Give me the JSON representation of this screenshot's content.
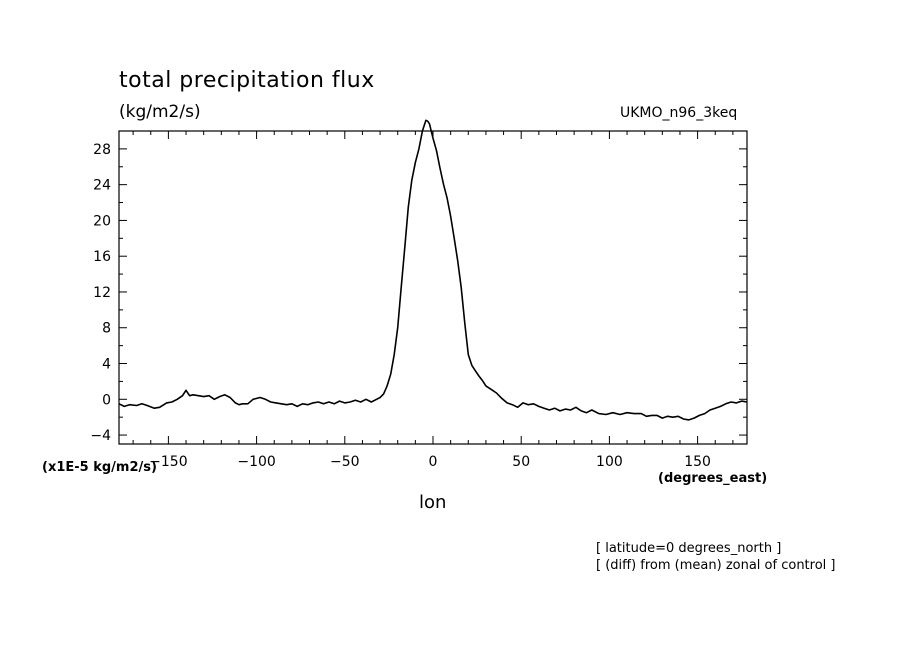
{
  "figure": {
    "title": "total precipitation flux",
    "units": "(kg/m2/s)",
    "model": "UKMO_n96_3keq",
    "yunit": "(x1E-5 kg/m2/s)",
    "xunit": "(degrees_east)",
    "xlabel": "lon",
    "note_latitude": "[ latitude=0 degrees_north ]",
    "note_diff": "[ (diff) from (mean) zonal of control ]"
  },
  "chart_data": {
    "type": "line",
    "title": "total precipitation flux",
    "units": "(kg/m2/s)",
    "xlabel": "lon",
    "xunit": "(degrees_east)",
    "yunit": "(x1E-5 kg/m2/s)",
    "xlim": [
      -178,
      178
    ],
    "ylim": [
      -5,
      30
    ],
    "x_ticks": [
      -150,
      -100,
      -50,
      0,
      50,
      100,
      150
    ],
    "y_ticks": [
      -4,
      0,
      4,
      8,
      12,
      16,
      20,
      24,
      28
    ],
    "grid": false,
    "line_color": "#000000",
    "series": [
      {
        "x": [
          -178,
          -175,
          -172,
          -168,
          -165,
          -162,
          -158,
          -155,
          -151,
          -148,
          -145,
          -142,
          -140,
          -138,
          -136,
          -133,
          -130,
          -127,
          -124,
          -121,
          -118,
          -115,
          -112,
          -110,
          -108,
          -105,
          -102,
          -98,
          -95,
          -92,
          -89,
          -86,
          -83,
          -80,
          -77,
          -74,
          -71,
          -68,
          -65,
          -62,
          -59,
          -56,
          -53,
          -50,
          -47,
          -44,
          -41,
          -38,
          -35,
          -32,
          -30,
          -28,
          -26,
          -24,
          -22,
          -20,
          -18,
          -16,
          -14,
          -12,
          -10,
          -8,
          -6,
          -4,
          -3,
          -2,
          -1,
          0,
          2,
          4,
          6,
          8,
          10,
          12,
          14,
          16,
          18,
          20,
          22,
          24,
          26,
          28,
          30,
          33,
          36,
          39,
          42,
          45,
          48,
          51,
          54,
          57,
          60,
          63,
          66,
          69,
          72,
          75,
          78,
          81,
          84,
          87,
          90,
          94,
          98,
          102,
          106,
          110,
          114,
          118,
          121,
          124,
          127,
          130,
          133,
          136,
          139,
          142,
          145,
          148,
          151,
          154,
          157,
          160,
          163,
          166,
          169,
          172,
          175,
          178
        ],
        "y": [
          -0.5,
          -0.8,
          -0.6,
          -0.7,
          -0.5,
          -0.7,
          -1.0,
          -0.9,
          -0.4,
          -0.3,
          0.0,
          0.4,
          1.0,
          0.4,
          0.5,
          0.4,
          0.3,
          0.4,
          0.0,
          0.3,
          0.5,
          0.2,
          -0.4,
          -0.6,
          -0.5,
          -0.5,
          0.0,
          0.2,
          0.0,
          -0.3,
          -0.4,
          -0.5,
          -0.6,
          -0.5,
          -0.8,
          -0.5,
          -0.6,
          -0.4,
          -0.3,
          -0.5,
          -0.3,
          -0.5,
          -0.2,
          -0.4,
          -0.3,
          -0.1,
          -0.3,
          0.0,
          -0.3,
          0.0,
          0.2,
          0.6,
          1.5,
          2.8,
          5.0,
          8.0,
          12.5,
          17.0,
          21.5,
          24.5,
          26.5,
          28.0,
          30.0,
          31.2,
          31.1,
          30.8,
          30.0,
          29.2,
          27.8,
          25.8,
          24.0,
          22.5,
          20.5,
          18.0,
          15.5,
          12.5,
          8.5,
          5.0,
          3.8,
          3.2,
          2.6,
          2.1,
          1.5,
          1.1,
          0.7,
          0.1,
          -0.4,
          -0.6,
          -0.9,
          -0.4,
          -0.6,
          -0.5,
          -0.8,
          -1.0,
          -1.2,
          -1.0,
          -1.3,
          -1.1,
          -1.2,
          -0.9,
          -1.3,
          -1.5,
          -1.2,
          -1.6,
          -1.7,
          -1.5,
          -1.7,
          -1.5,
          -1.6,
          -1.6,
          -1.9,
          -1.8,
          -1.8,
          -2.1,
          -1.9,
          -2.0,
          -1.9,
          -2.2,
          -2.3,
          -2.1,
          -1.8,
          -1.6,
          -1.2,
          -1.0,
          -0.8,
          -0.5,
          -0.3,
          -0.4,
          -0.2,
          -0.3
        ]
      }
    ]
  }
}
